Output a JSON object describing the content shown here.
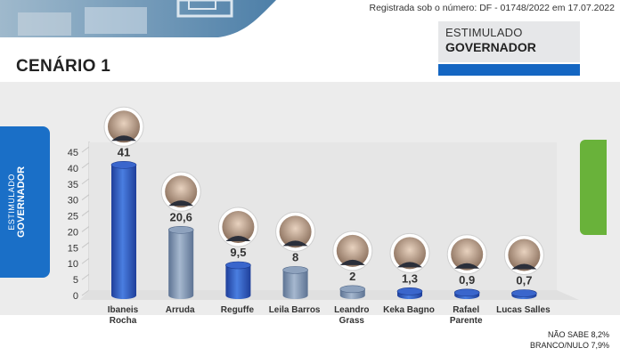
{
  "header": {
    "registry": "Registrada sob o número: DF - 01748/2022 em 17.07.2022"
  },
  "survey": {
    "type_line1": "ESTIMULADO",
    "type_line2": "GOVERNADOR"
  },
  "scenario_title": "CENÁRIO 1",
  "side_label": {
    "line1": "ESTIMULADO",
    "line2": "GOVERNADOR"
  },
  "colors": {
    "primary_blue": "#1a6fc7",
    "bar_blue": "#2f62c4",
    "bar_gray": "#7f95b3",
    "accent_green": "#69b23a"
  },
  "chart_data": {
    "type": "bar",
    "categories": [
      [
        "Ibaneis",
        "Rocha"
      ],
      [
        "Arruda"
      ],
      [
        "Reguffe"
      ],
      [
        "Leila Barros"
      ],
      [
        "Leandro",
        "Grass"
      ],
      [
        "Keka Bagno"
      ],
      [
        "Rafael",
        "Parente"
      ],
      [
        "Lucas Salles"
      ]
    ],
    "values": [
      41,
      20.6,
      9.5,
      8,
      2,
      1.3,
      0.9,
      0.7
    ],
    "value_labels": [
      "41",
      "20,6",
      "9,5",
      "8",
      "2",
      "1,3",
      "0,9",
      "0,7"
    ],
    "bar_colors": [
      "blue",
      "gray",
      "blue",
      "gray",
      "gray",
      "blue",
      "blue",
      "blue"
    ],
    "y_ticks": [
      0,
      5,
      10,
      15,
      20,
      25,
      30,
      35,
      40,
      45
    ],
    "ylim": [
      0,
      45
    ],
    "grid": false,
    "candidate_photos": true
  },
  "footnotes": {
    "nao_sabe": "NÃO SABE 8,2%",
    "branco_nulo": "BRANCO/NULO 7,9%"
  }
}
